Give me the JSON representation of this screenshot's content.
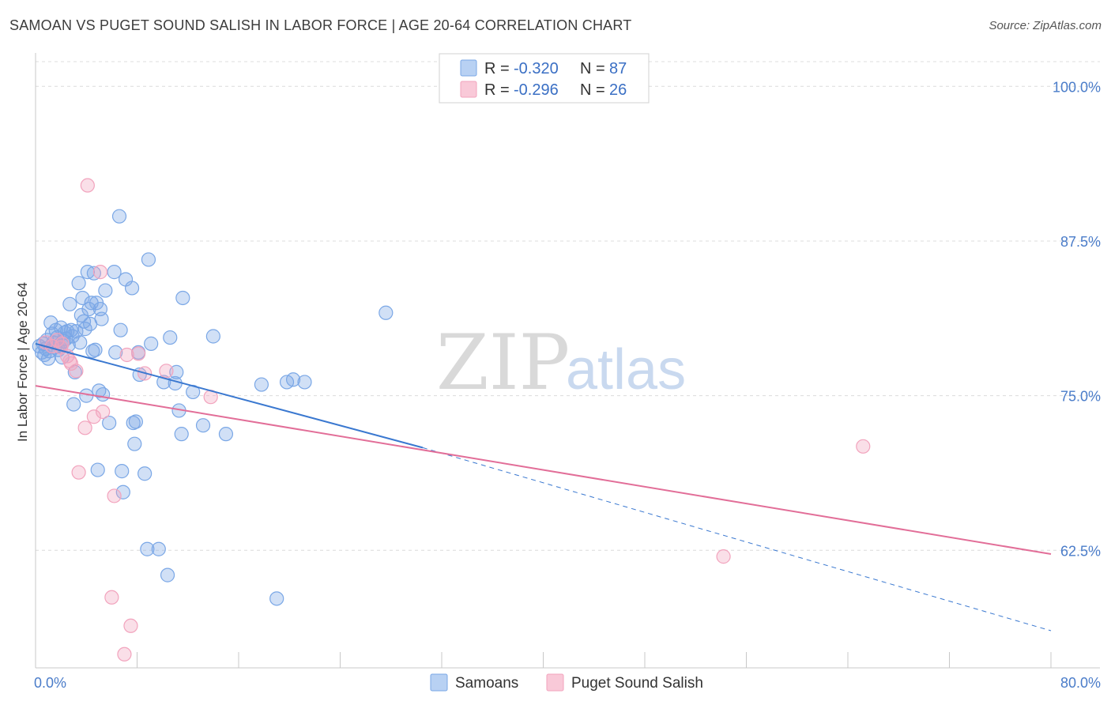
{
  "header": {
    "title": "SAMOAN VS PUGET SOUND SALISH IN LABOR FORCE | AGE 20-64 CORRELATION CHART",
    "source": "Source: ZipAtlas.com"
  },
  "watermark": {
    "zip": "ZIP",
    "atlas": "atlas"
  },
  "chart_data": {
    "type": "scatter",
    "title": "SAMOAN VS PUGET SOUND SALISH IN LABOR FORCE | AGE 20-64 CORRELATION CHART",
    "xlabel": "",
    "ylabel": "In Labor Force | Age 20-64",
    "xlim": [
      0,
      80
    ],
    "ylim": [
      53,
      102
    ],
    "x_tick_labels": [
      "0.0%",
      "80.0%"
    ],
    "y_ticks": [
      62.5,
      75.0,
      87.5,
      100.0
    ],
    "y_tick_labels": [
      "62.5%",
      "75.0%",
      "87.5%",
      "100.0%"
    ],
    "grid": "horizontal-dashed",
    "legend": {
      "position": "top-center",
      "r_label": "R =",
      "n_label": "N =",
      "entries": [
        {
          "r": "-0.320",
          "n": "87"
        },
        {
          "r": "-0.296",
          "n": "26"
        }
      ]
    },
    "series": [
      {
        "name": "Samoans",
        "color": "#7aa7e6",
        "trend": {
          "x0": 0,
          "y0": 79.2,
          "x1": 30.5,
          "y1": 70.8,
          "dash_to_x": 80,
          "dash_to_y": 56.0
        },
        "points": [
          [
            0.3,
            79.0
          ],
          [
            0.5,
            78.5
          ],
          [
            0.6,
            79.2
          ],
          [
            0.7,
            78.3
          ],
          [
            0.8,
            78.8
          ],
          [
            0.9,
            79.5
          ],
          [
            1.0,
            78.0
          ],
          [
            1.1,
            78.6
          ],
          [
            1.2,
            80.9
          ],
          [
            1.3,
            80.0
          ],
          [
            1.4,
            79.3
          ],
          [
            1.5,
            78.9
          ],
          [
            1.6,
            80.3
          ],
          [
            1.7,
            79.7
          ],
          [
            1.8,
            78.7
          ],
          [
            1.9,
            79.0
          ],
          [
            2.0,
            80.5
          ],
          [
            2.1,
            78.1
          ],
          [
            2.2,
            79.4
          ],
          [
            2.3,
            80.1
          ],
          [
            2.4,
            79.6
          ],
          [
            2.5,
            80.2
          ],
          [
            2.6,
            79.1
          ],
          [
            2.7,
            82.4
          ],
          [
            2.8,
            80.3
          ],
          [
            2.9,
            79.8
          ],
          [
            3.0,
            74.3
          ],
          [
            3.1,
            76.9
          ],
          [
            3.2,
            80.2
          ],
          [
            3.4,
            84.1
          ],
          [
            3.5,
            79.3
          ],
          [
            3.6,
            81.5
          ],
          [
            3.7,
            82.9
          ],
          [
            3.8,
            81.0
          ],
          [
            3.9,
            80.4
          ],
          [
            4.0,
            75.0
          ],
          [
            4.1,
            85.0
          ],
          [
            4.2,
            82.0
          ],
          [
            4.3,
            80.8
          ],
          [
            4.4,
            82.5
          ],
          [
            4.5,
            78.6
          ],
          [
            4.6,
            84.9
          ],
          [
            4.7,
            78.7
          ],
          [
            4.8,
            82.5
          ],
          [
            4.9,
            69.0
          ],
          [
            5.0,
            75.4
          ],
          [
            5.1,
            82.0
          ],
          [
            5.2,
            81.2
          ],
          [
            5.3,
            75.1
          ],
          [
            5.5,
            83.5
          ],
          [
            5.8,
            72.8
          ],
          [
            6.2,
            85.0
          ],
          [
            6.3,
            78.5
          ],
          [
            6.6,
            89.5
          ],
          [
            6.7,
            80.3
          ],
          [
            6.8,
            68.9
          ],
          [
            6.9,
            67.2
          ],
          [
            7.1,
            84.4
          ],
          [
            7.6,
            83.7
          ],
          [
            7.7,
            72.8
          ],
          [
            7.8,
            71.1
          ],
          [
            7.9,
            72.9
          ],
          [
            8.1,
            78.5
          ],
          [
            8.2,
            76.7
          ],
          [
            8.6,
            68.7
          ],
          [
            8.8,
            62.6
          ],
          [
            8.9,
            86.0
          ],
          [
            9.1,
            79.2
          ],
          [
            9.7,
            62.6
          ],
          [
            10.1,
            76.1
          ],
          [
            10.4,
            60.5
          ],
          [
            10.6,
            79.7
          ],
          [
            11.0,
            76.0
          ],
          [
            11.1,
            76.9
          ],
          [
            11.3,
            73.8
          ],
          [
            11.5,
            71.9
          ],
          [
            11.6,
            82.9
          ],
          [
            12.4,
            75.3
          ],
          [
            13.2,
            72.6
          ],
          [
            14.0,
            79.8
          ],
          [
            15.0,
            71.9
          ],
          [
            17.8,
            75.9
          ],
          [
            19.0,
            58.6
          ],
          [
            19.8,
            76.1
          ],
          [
            20.3,
            76.3
          ],
          [
            21.2,
            76.1
          ],
          [
            27.6,
            81.7
          ]
        ]
      },
      {
        "name": "Puget Sound Salish",
        "color": "#f2a3bd",
        "trend": {
          "x0": 0,
          "y0": 75.8,
          "x1": 80,
          "y1": 62.2
        },
        "points": [
          [
            0.8,
            79.3
          ],
          [
            1.3,
            79.0
          ],
          [
            1.7,
            79.5
          ],
          [
            2.0,
            78.9
          ],
          [
            2.1,
            79.2
          ],
          [
            2.5,
            78.2
          ],
          [
            2.7,
            77.8
          ],
          [
            2.8,
            77.6
          ],
          [
            3.2,
            77.0
          ],
          [
            3.4,
            68.8
          ],
          [
            3.9,
            72.4
          ],
          [
            4.1,
            92.0
          ],
          [
            4.6,
            73.3
          ],
          [
            5.1,
            85.0
          ],
          [
            5.3,
            73.7
          ],
          [
            6.0,
            58.7
          ],
          [
            6.2,
            66.9
          ],
          [
            7.0,
            54.1
          ],
          [
            7.2,
            78.3
          ],
          [
            7.5,
            56.4
          ],
          [
            8.1,
            78.4
          ],
          [
            8.6,
            76.8
          ],
          [
            10.3,
            77.0
          ],
          [
            13.8,
            74.9
          ],
          [
            54.2,
            62.0
          ],
          [
            65.2,
            70.9
          ]
        ]
      }
    ]
  },
  "bottom_legend": [
    "Samoans",
    "Puget Sound Salish"
  ]
}
